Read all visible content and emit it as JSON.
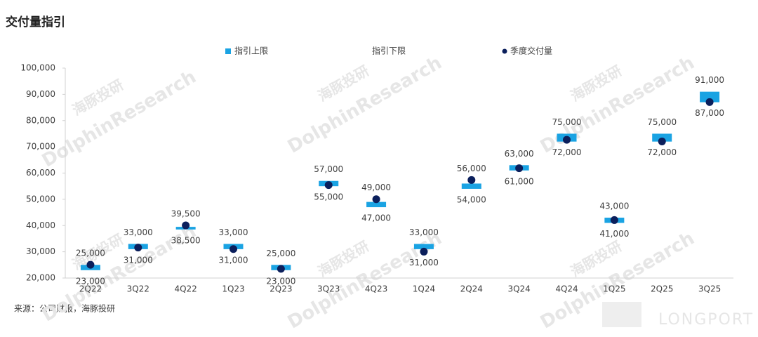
{
  "chart_data": {
    "type": "range-dot",
    "title": "交付量指引",
    "categories": [
      "2Q22",
      "3Q22",
      "4Q22",
      "1Q23",
      "2Q23",
      "3Q23",
      "4Q23",
      "1Q24",
      "2Q24",
      "3Q24",
      "4Q24",
      "1Q25",
      "2Q25",
      "3Q25"
    ],
    "series": [
      {
        "name": "指引上限",
        "color": "#1aa3e3",
        "values": [
          25000,
          33000,
          39500,
          33000,
          25000,
          57000,
          49000,
          33000,
          56000,
          63000,
          75000,
          43000,
          75000,
          91000
        ],
        "value_labels": [
          "25,000",
          "33,000",
          "39,500",
          "33,000",
          "25,000",
          "57,000",
          "49,000",
          "33,000",
          "56,000",
          "63,000",
          "75,000",
          "43,000",
          "75,000",
          "91,000"
        ]
      },
      {
        "name": "指引下限",
        "values": [
          23000,
          31000,
          38500,
          31000,
          23000,
          55000,
          47000,
          31000,
          54000,
          61000,
          72000,
          41000,
          72000,
          87000
        ],
        "value_labels": [
          "23,000",
          "31,000",
          "38,500",
          "31,000",
          "23,000",
          "55,000",
          "47,000",
          "31,000",
          "54,000",
          "61,000",
          "72,000",
          "41,000",
          "72,000",
          "87,000"
        ]
      },
      {
        "name": "季度交付量",
        "color": "#0b1f5c",
        "values": [
          25059,
          31607,
          40052,
          31041,
          23520,
          55432,
          50045,
          30053,
          57373,
          61855,
          72689,
          42094,
          72056,
          87071
        ]
      }
    ],
    "ylim": [
      20000,
      100000
    ],
    "yticks": [
      {
        "value": 20000,
        "label": "20,000"
      },
      {
        "value": 30000,
        "label": "30,000"
      },
      {
        "value": 40000,
        "label": "40,000"
      },
      {
        "value": 50000,
        "label": "50,000"
      },
      {
        "value": 60000,
        "label": "60,000"
      },
      {
        "value": 70000,
        "label": "70,000"
      },
      {
        "value": 80000,
        "label": "80,000"
      },
      {
        "value": 90000,
        "label": "90,000"
      },
      {
        "value": 100000,
        "label": "100,000"
      }
    ],
    "grid": false,
    "source": "来源：公司财报，海豚投研",
    "watermarks": [
      "DolphinResearch",
      "海豚投研",
      "LONGPORT"
    ]
  }
}
